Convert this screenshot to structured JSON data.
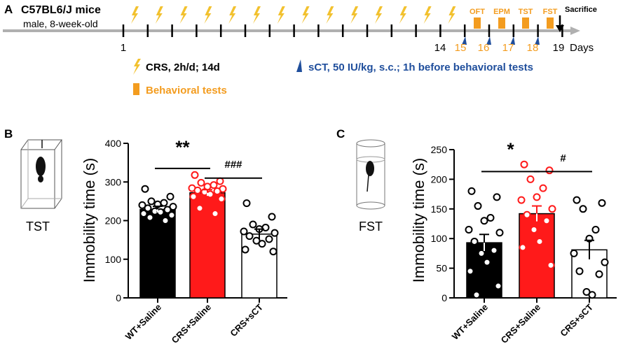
{
  "panel_a": {
    "panel_letter": "A",
    "subject_title": "C57BL6/J mice",
    "subject_subtitle": "male, 8-week-old",
    "day_labels_black": [
      "1",
      "14",
      "19"
    ],
    "day_labels_orange": [
      "15",
      "16",
      "17",
      "18"
    ],
    "days_word": "Days",
    "tests": [
      "OFT",
      "EPM",
      "TST",
      "FST"
    ],
    "sacrifice_label": "Sacrifice",
    "legend_crs": "CRS, 2h/d; 14d",
    "legend_behavioral": "Behavioral tests",
    "legend_sct": "sCT, 50 IU/kg, s.c.; 1h before behavioral tests",
    "colors": {
      "orange": "#f39c1f",
      "bolt": "#f2c12e",
      "blue": "#1f4e9c",
      "timeline": "#b0b0b0"
    }
  },
  "chart_data": [
    {
      "type": "bar",
      "panel_letter": "B",
      "test_label": "TST",
      "title": "",
      "xlabel": "",
      "ylabel": "Immobility time (s)",
      "ylim": [
        0,
        400
      ],
      "yticks": [
        0,
        100,
        200,
        300,
        400
      ],
      "categories": [
        "WT+Saline",
        "CRS+Saline",
        "CRS+sCT"
      ],
      "values": [
        229,
        272,
        165
      ],
      "errors": [
        8,
        8,
        13
      ],
      "bar_colors": [
        "#000000",
        "#ff1a1a",
        "#ffffff"
      ],
      "point_colors": [
        "#000000",
        "#ff1a1a",
        "#000000"
      ],
      "points": [
        [
          282,
          262,
          250,
          246,
          242,
          240,
          236,
          232,
          228,
          224,
          222,
          218,
          214,
          208,
          200
        ],
        [
          318,
          302,
          298,
          292,
          288,
          284,
          282,
          278,
          276,
          274,
          268,
          262,
          256,
          232,
          218
        ],
        [
          245,
          210,
          190,
          182,
          178,
          172,
          168,
          160,
          152,
          148,
          140,
          125,
          120
        ]
      ],
      "significance": [
        {
          "from": 0,
          "to": 1,
          "y": 335,
          "label": "**",
          "text_y": 374
        },
        {
          "from": 1,
          "to": 2,
          "y": 310,
          "label": "###",
          "text_y": 337
        }
      ]
    },
    {
      "type": "bar",
      "panel_letter": "C",
      "test_label": "FST",
      "title": "",
      "xlabel": "",
      "ylabel": "Immobility time (s)",
      "ylim": [
        0,
        250
      ],
      "yticks": [
        0,
        50,
        100,
        150,
        200,
        250
      ],
      "categories": [
        "WT+Saline",
        "CRS+Saline",
        "CRS+sCT"
      ],
      "values": [
        93,
        142,
        81
      ],
      "errors": [
        14,
        13,
        16
      ],
      "bar_colors": [
        "#000000",
        "#ff1a1a",
        "#ffffff"
      ],
      "point_colors": [
        "#000000",
        "#ff1a1a",
        "#000000"
      ],
      "points": [
        [
          180,
          170,
          155,
          135,
          130,
          115,
          110,
          95,
          80,
          75,
          60,
          45,
          20,
          5
        ],
        [
          225,
          215,
          200,
          185,
          170,
          165,
          150,
          140,
          130,
          115,
          95,
          85,
          55
        ],
        [
          165,
          160,
          150,
          115,
          100,
          75,
          60,
          45,
          40,
          10,
          5
        ]
      ],
      "significance": [
        {
          "from": 0,
          "to": 1,
          "y": 213,
          "label": "*",
          "text_y": 240
        },
        {
          "from": 1,
          "to": 2,
          "y": 213,
          "label": "#",
          "text_y": 230
        }
      ]
    }
  ]
}
